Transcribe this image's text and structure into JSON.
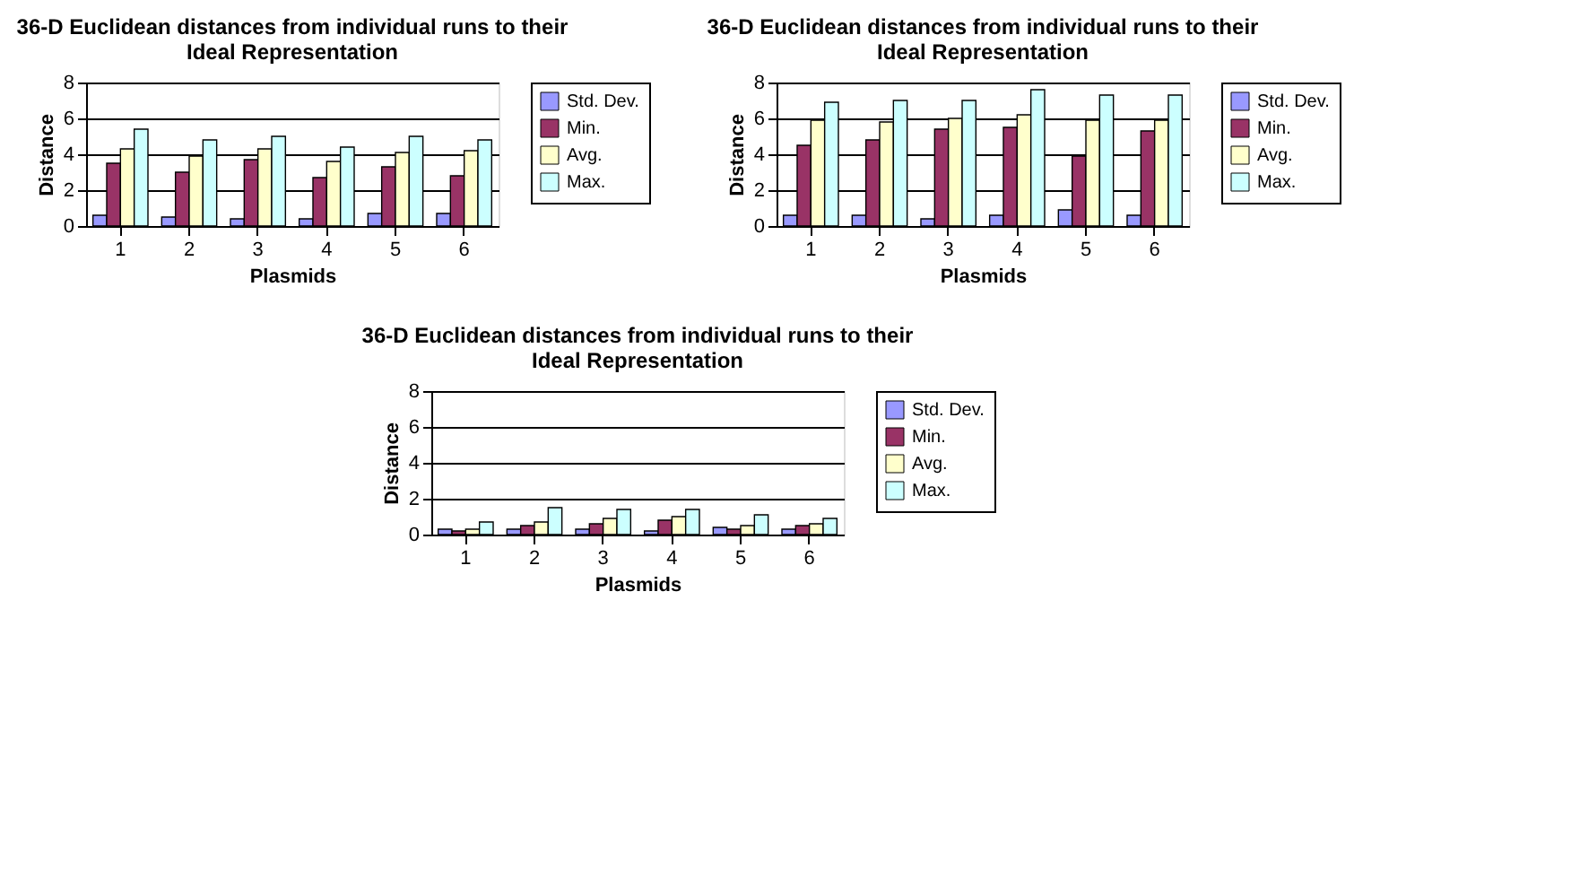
{
  "chart_data": [
    {
      "type": "bar",
      "title": "36-D Euclidean distances from individual runs to their Ideal Representation",
      "xlabel": "Plasmids",
      "ylabel": "Distance",
      "categories": [
        "1",
        "2",
        "3",
        "4",
        "5",
        "6"
      ],
      "ylim": [
        0,
        8
      ],
      "yticks": [
        0,
        2,
        4,
        6,
        8
      ],
      "grid": "y",
      "legend": "right",
      "series": [
        {
          "name": "Std. Dev.",
          "color": "#9999ff",
          "values": [
            0.6,
            0.5,
            0.4,
            0.4,
            0.7,
            0.7
          ]
        },
        {
          "name": "Min.",
          "color": "#993366",
          "values": [
            3.5,
            3.0,
            3.7,
            2.7,
            3.3,
            2.8
          ]
        },
        {
          "name": "Avg.",
          "color": "#ffffcc",
          "values": [
            4.3,
            3.9,
            4.3,
            3.6,
            4.1,
            4.2
          ]
        },
        {
          "name": "Max.",
          "color": "#ccffff",
          "values": [
            5.4,
            4.8,
            5.0,
            4.4,
            5.0,
            4.8
          ]
        }
      ]
    },
    {
      "type": "bar",
      "title": "36-D Euclidean distances from individual runs to their Ideal Representation",
      "xlabel": "Plasmids",
      "ylabel": "Distance",
      "categories": [
        "1",
        "2",
        "3",
        "4",
        "5",
        "6"
      ],
      "ylim": [
        0,
        8
      ],
      "yticks": [
        0,
        2,
        4,
        6,
        8
      ],
      "grid": "y",
      "legend": "right",
      "series": [
        {
          "name": "Std. Dev.",
          "color": "#9999ff",
          "values": [
            0.6,
            0.6,
            0.4,
            0.6,
            0.9,
            0.6
          ]
        },
        {
          "name": "Min.",
          "color": "#993366",
          "values": [
            4.5,
            4.8,
            5.4,
            5.5,
            3.9,
            5.3
          ]
        },
        {
          "name": "Avg.",
          "color": "#ffffcc",
          "values": [
            5.9,
            5.8,
            6.0,
            6.2,
            5.9,
            5.9
          ]
        },
        {
          "name": "Max.",
          "color": "#ccffff",
          "values": [
            6.9,
            7.0,
            7.0,
            7.6,
            7.3,
            7.3
          ]
        }
      ]
    },
    {
      "type": "bar",
      "title": "36-D Euclidean distances from individual runs to their Ideal Representation",
      "xlabel": "Plasmids",
      "ylabel": "Distance",
      "categories": [
        "1",
        "2",
        "3",
        "4",
        "5",
        "6"
      ],
      "ylim": [
        0,
        8
      ],
      "yticks": [
        0,
        2,
        4,
        6,
        8
      ],
      "grid": "y",
      "legend": "right",
      "series": [
        {
          "name": "Std. Dev.",
          "color": "#9999ff",
          "values": [
            0.3,
            0.3,
            0.3,
            0.2,
            0.4,
            0.3
          ]
        },
        {
          "name": "Min.",
          "color": "#993366",
          "values": [
            0.2,
            0.5,
            0.6,
            0.8,
            0.3,
            0.5
          ]
        },
        {
          "name": "Avg.",
          "color": "#ffffcc",
          "values": [
            0.3,
            0.7,
            0.9,
            1.0,
            0.5,
            0.6
          ]
        },
        {
          "name": "Max.",
          "color": "#ccffff",
          "values": [
            0.7,
            1.5,
            1.4,
            1.4,
            1.1,
            0.9
          ]
        }
      ]
    }
  ]
}
